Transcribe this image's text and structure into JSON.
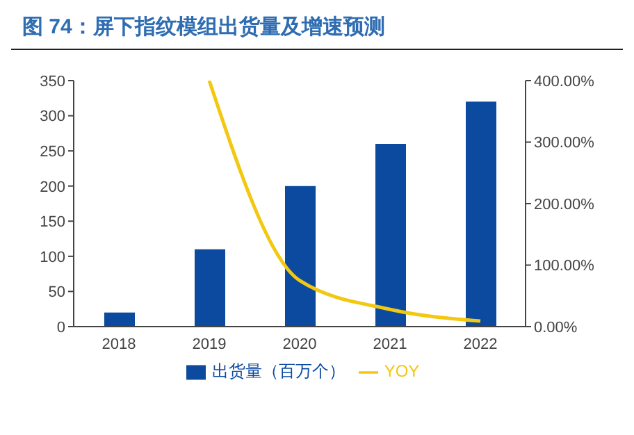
{
  "chart_data": {
    "type": "bar",
    "title": "图 74：屏下指纹模组出货量及增速预测",
    "categories": [
      "2018",
      "2019",
      "2020",
      "2021",
      "2022"
    ],
    "series": [
      {
        "name": "出货量（百万个）",
        "color": "#0b4a9e",
        "values": [
          20,
          110,
          200,
          260,
          320
        ]
      },
      {
        "name": "YOY",
        "type": "line",
        "axis": "y2",
        "color": "#f2c811",
        "values": [
          null,
          400,
          75,
          28,
          9
        ]
      }
    ],
    "ylim": [
      0,
      350
    ],
    "yticks": [
      0,
      50,
      100,
      150,
      200,
      250,
      300,
      350
    ],
    "y2lim": [
      0,
      400
    ],
    "y2ticks": [
      {
        "value": 0,
        "label": "0.00%"
      },
      {
        "value": 100,
        "label": "100.00%"
      },
      {
        "value": 200,
        "label": "200.00%"
      },
      {
        "value": 300,
        "label": "300.00%"
      },
      {
        "value": 400,
        "label": "400.00%"
      }
    ],
    "legend": "bottom",
    "grid": false,
    "marker": "none",
    "line_style": "solid"
  }
}
